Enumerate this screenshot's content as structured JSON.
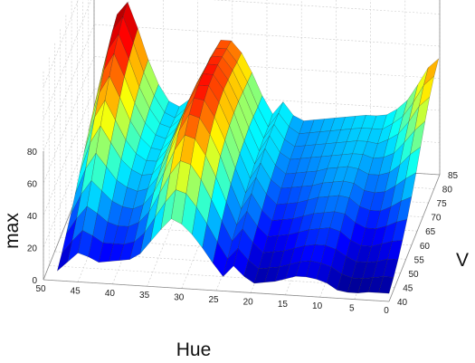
{
  "chart_data": {
    "type": "surface",
    "title": "",
    "colormap": "jet",
    "colormap_stops": [
      "#00008f",
      "#0000ff",
      "#0080ff",
      "#00ffff",
      "#80ff80",
      "#ffff00",
      "#ff8000",
      "#ff0000",
      "#800000"
    ],
    "grid": true,
    "axes": {
      "x": {
        "label": "Hue",
        "range": [
          0,
          50
        ],
        "ticks": [
          "0",
          "5",
          "10",
          "15",
          "20",
          "25",
          "30",
          "35",
          "40",
          "45",
          "50"
        ],
        "tick_values": [
          0,
          5,
          10,
          15,
          20,
          25,
          30,
          35,
          40,
          45,
          50
        ]
      },
      "y": {
        "label": "V",
        "range": [
          40,
          85
        ],
        "ticks": [
          "40",
          "45",
          "50",
          "55",
          "60",
          "65",
          "70",
          "75",
          "80",
          "85"
        ],
        "tick_values": [
          40,
          45,
          50,
          55,
          60,
          65,
          70,
          75,
          80,
          85
        ]
      },
      "z": {
        "label": "max",
        "range": [
          0,
          80
        ],
        "ticks": [
          "0",
          "20",
          "40",
          "60",
          "80"
        ],
        "tick_values": [
          0,
          20,
          40,
          60,
          80
        ]
      }
    },
    "hue": [
      0,
      1.5,
      3,
      4.5,
      6,
      7.5,
      9,
      10.5,
      12,
      13.5,
      15,
      16.5,
      18,
      19.5,
      21,
      22.5,
      24,
      25.5,
      27,
      28.5,
      30,
      31.5,
      33,
      34.5,
      36,
      37.5,
      39,
      40.5,
      42,
      43.5,
      45,
      46.5,
      48
    ],
    "v": [
      40,
      44,
      48,
      52,
      56,
      60,
      64,
      68,
      72,
      76,
      80,
      84
    ],
    "max": [
      [
        5,
        5,
        5,
        4,
        4,
        5,
        9,
        11,
        12,
        12,
        10,
        8,
        7,
        6,
        10,
        16,
        9,
        17,
        26,
        34,
        40,
        43,
        36,
        28,
        20,
        16,
        15,
        14,
        13,
        16,
        18,
        12,
        6
      ],
      [
        8,
        8,
        7,
        6,
        6,
        8,
        12,
        14,
        15,
        14,
        12,
        10,
        9,
        8,
        13,
        20,
        13,
        23,
        34,
        44,
        52,
        54,
        46,
        36,
        26,
        20,
        18,
        18,
        18,
        22,
        25,
        18,
        10
      ],
      [
        12,
        12,
        10,
        9,
        9,
        12,
        16,
        18,
        18,
        17,
        15,
        13,
        12,
        11,
        17,
        25,
        17,
        29,
        42,
        54,
        63,
        65,
        56,
        44,
        32,
        25,
        22,
        22,
        24,
        29,
        33,
        25,
        15
      ],
      [
        17,
        16,
        14,
        12,
        12,
        15,
        20,
        22,
        21,
        20,
        18,
        16,
        15,
        14,
        20,
        29,
        20,
        34,
        49,
        62,
        72,
        74,
        64,
        50,
        37,
        29,
        26,
        27,
        30,
        36,
        42,
        33,
        20
      ],
      [
        23,
        21,
        18,
        16,
        16,
        19,
        24,
        25,
        24,
        23,
        21,
        19,
        18,
        17,
        23,
        33,
        23,
        38,
        55,
        68,
        78,
        80,
        69,
        54,
        40,
        32,
        30,
        32,
        36,
        44,
        52,
        42,
        26
      ],
      [
        30,
        27,
        23,
        20,
        20,
        22,
        27,
        28,
        27,
        26,
        24,
        22,
        21,
        20,
        26,
        36,
        26,
        41,
        58,
        72,
        82,
        83,
        72,
        56,
        42,
        34,
        33,
        36,
        42,
        52,
        62,
        51,
        32
      ],
      [
        38,
        34,
        29,
        25,
        24,
        25,
        29,
        30,
        29,
        28,
        26,
        25,
        24,
        23,
        28,
        38,
        28,
        43,
        60,
        74,
        84,
        84,
        73,
        57,
        43,
        35,
        35,
        39,
        47,
        59,
        71,
        60,
        38
      ],
      [
        47,
        42,
        35,
        30,
        28,
        28,
        31,
        32,
        31,
        30,
        28,
        27,
        26,
        25,
        30,
        40,
        30,
        44,
        61,
        75,
        84,
        84,
        72,
        56,
        42,
        35,
        36,
        42,
        52,
        66,
        79,
        68,
        44
      ],
      [
        56,
        50,
        42,
        35,
        32,
        31,
        33,
        33,
        32,
        31,
        30,
        29,
        28,
        27,
        31,
        41,
        31,
        45,
        61,
        74,
        83,
        83,
        71,
        55,
        42,
        35,
        37,
        44,
        56,
        72,
        86,
        75,
        50
      ],
      [
        64,
        58,
        48,
        40,
        36,
        33,
        34,
        34,
        33,
        32,
        31,
        30,
        29,
        28,
        32,
        41,
        32,
        45,
        60,
        73,
        81,
        81,
        69,
        54,
        41,
        35,
        37,
        46,
        59,
        76,
        91,
        81,
        55
      ],
      [
        70,
        64,
        53,
        44,
        39,
        35,
        35,
        35,
        34,
        33,
        32,
        31,
        30,
        29,
        33,
        41,
        32,
        44,
        59,
        71,
        79,
        79,
        67,
        52,
        40,
        34,
        37,
        47,
        61,
        79,
        95,
        86,
        60
      ],
      [
        74,
        68,
        57,
        47,
        41,
        37,
        36,
        36,
        35,
        34,
        33,
        32,
        31,
        30,
        33,
        41,
        33,
        44,
        58,
        70,
        77,
        77,
        66,
        51,
        39,
        34,
        37,
        47,
        62,
        81,
        97,
        89,
        63
      ]
    ]
  }
}
